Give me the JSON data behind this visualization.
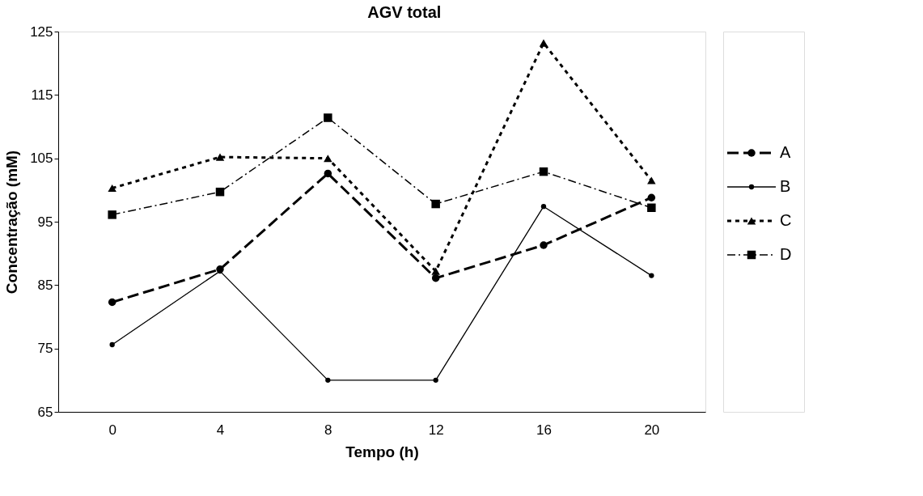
{
  "chart_data": {
    "type": "line",
    "title": "AGV total",
    "xlabel": "Tempo (h)",
    "ylabel": "Concentração (mM)",
    "categories": [
      "0",
      "4",
      "8",
      "12",
      "16",
      "20"
    ],
    "series": [
      {
        "name": "A",
        "color": "#000000",
        "marker": "circle",
        "line_style": "dashed",
        "values": [
          82.3,
          87.5,
          102.6,
          86.1,
          91.3,
          98.8
        ]
      },
      {
        "name": "B",
        "color": "#000000",
        "marker": "circle",
        "line_style": "solid",
        "values": [
          75.6,
          87.2,
          70.0,
          70.0,
          97.4,
          86.5
        ]
      },
      {
        "name": "C",
        "color": "#000000",
        "marker": "triangle",
        "line_style": "dotted",
        "values": [
          100.3,
          105.2,
          105.0,
          87.2,
          123.2,
          101.5
        ]
      },
      {
        "name": "D",
        "color": "#000000",
        "marker": "square",
        "line_style": "dashdot",
        "values": [
          96.1,
          99.7,
          111.4,
          97.8,
          102.9,
          97.2
        ]
      }
    ],
    "ylim": [
      65,
      125
    ],
    "yticks": [
      65,
      75,
      85,
      95,
      105,
      115,
      125
    ],
    "grid": false,
    "legend": "right"
  }
}
